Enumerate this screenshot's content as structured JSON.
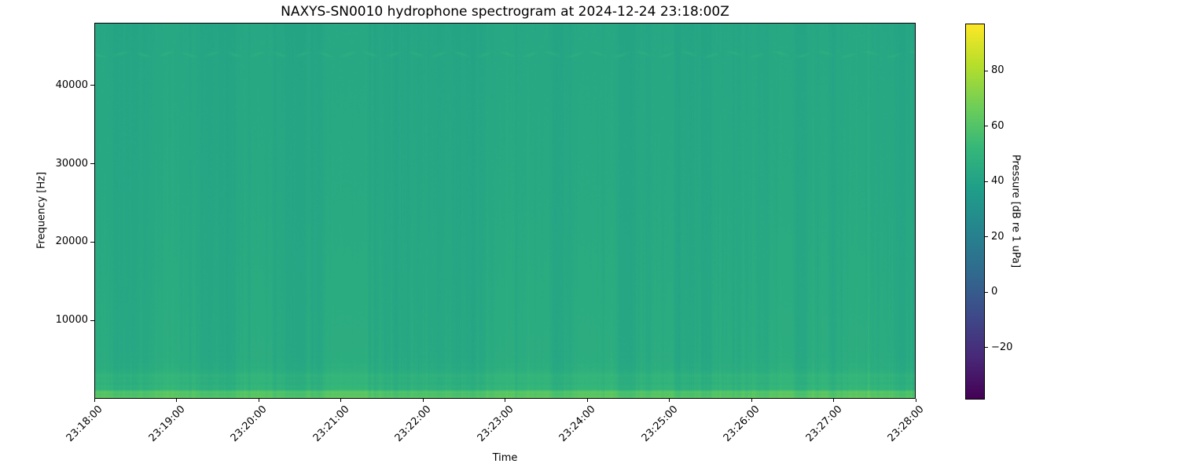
{
  "chart_data": {
    "type": "heatmap",
    "subtype": "spectrogram",
    "title": "NAXYS-SN0010 hydrophone spectrogram at 2024-12-24 23:18:00Z",
    "xlabel": "Time",
    "ylabel": "Frequency [Hz]",
    "x_tick_labels": [
      "23:18:00",
      "23:19:00",
      "23:20:00",
      "23:21:00",
      "23:22:00",
      "23:23:00",
      "23:24:00",
      "23:25:00",
      "23:26:00",
      "23:27:00",
      "23:28:00"
    ],
    "x_range": [
      "23:18:00",
      "23:28:00"
    ],
    "y_ticks": [
      10000,
      20000,
      30000,
      40000
    ],
    "y_tick_labels": [
      "10000",
      "20000",
      "30000",
      "40000"
    ],
    "y_range_hz": [
      0,
      48000
    ],
    "grid": false,
    "legend": "none",
    "colorbar": {
      "label": "Pressure [dB re 1 uPa]",
      "ticks": [
        80,
        60,
        40,
        20,
        0,
        -20
      ],
      "tick_labels": [
        "80",
        "60",
        "40",
        "20",
        "0",
        "−20"
      ],
      "vmin": -38.7,
      "vmax": 97.0,
      "colormap": "viridis",
      "gradient_stops": [
        [
          0.0,
          "#440154"
        ],
        [
          0.11,
          "#482878"
        ],
        [
          0.22,
          "#3e4989"
        ],
        [
          0.33,
          "#31688e"
        ],
        [
          0.44,
          "#26828e"
        ],
        [
          0.56,
          "#1f9e89"
        ],
        [
          0.67,
          "#35b779"
        ],
        [
          0.78,
          "#6ece58"
        ],
        [
          0.89,
          "#b5de2b"
        ],
        [
          1.0,
          "#fde725"
        ]
      ]
    },
    "background_level_db": 43,
    "freq_profile_db": [
      [
        0,
        60
      ],
      [
        800,
        60
      ],
      [
        1200,
        50
      ],
      [
        2000,
        48.5
      ],
      [
        3000,
        49.5
      ],
      [
        3600,
        46
      ],
      [
        5200,
        44.8
      ],
      [
        12000,
        44.2
      ],
      [
        25000,
        43.4
      ],
      [
        43000,
        42.9
      ],
      [
        44500,
        42.8
      ],
      [
        48000,
        42.4
      ]
    ],
    "features": {
      "tonal_line_hz": 44100,
      "tonal_line_boost_db": 4.3,
      "bottom_band_hz": 800,
      "bottom_band_db": 60,
      "streak_variation_db": 2.3,
      "description": "Near-uniform teal field (~43 dB) with faint vertical broadband transient streaks, a bright green band below ~1 kHz, low-frequency horizontal banding, and a faint wavy tonal line near 44.1 kHz"
    }
  }
}
